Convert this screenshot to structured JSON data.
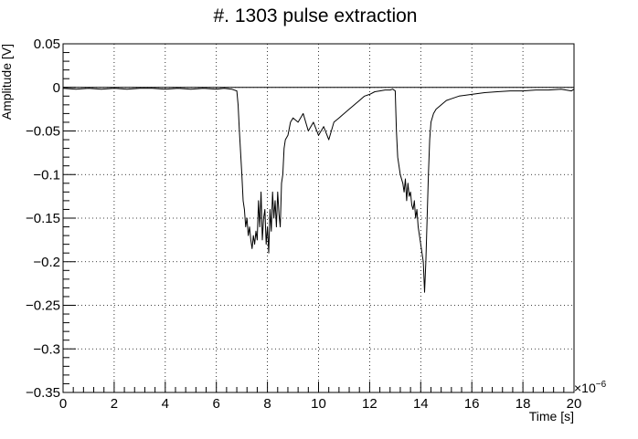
{
  "chart_data": {
    "type": "line",
    "title": "#. 1303 pulse extraction",
    "xlabel": "Time [s]",
    "ylabel": "Amplitude [V]",
    "x_exponent_label": "×10",
    "x_exponent_power": "−6",
    "xlim": [
      0,
      20
    ],
    "ylim": [
      -0.35,
      0.05
    ],
    "x_ticks": [
      0,
      2,
      4,
      6,
      8,
      10,
      12,
      14,
      16,
      18,
      20
    ],
    "x_tick_labels": [
      "0",
      "2",
      "4",
      "6",
      "8",
      "10",
      "12",
      "14",
      "16",
      "18",
      "20"
    ],
    "y_ticks": [
      -0.35,
      -0.3,
      -0.25,
      -0.2,
      -0.15,
      -0.1,
      -0.05,
      0,
      0.05
    ],
    "y_tick_labels": [
      "−0.35",
      "−0.3",
      "−0.25",
      "−0.2",
      "−0.15",
      "−0.1",
      "−0.05",
      "0",
      "0.05"
    ],
    "grid": true,
    "baseline": 0,
    "line_color": "#000000",
    "series": [
      {
        "x": [
          0,
          0.5,
          1,
          1.5,
          2,
          2.5,
          3,
          3.5,
          4,
          4.5,
          5,
          5.5,
          6,
          6.3,
          6.6,
          6.8,
          6.85,
          6.9,
          7.0,
          7.05,
          7.1,
          7.15,
          7.2,
          7.25,
          7.3,
          7.35,
          7.4,
          7.45,
          7.5,
          7.55,
          7.6,
          7.65,
          7.7,
          7.75,
          7.8,
          7.85,
          7.9,
          7.95,
          8.0,
          8.05,
          8.1,
          8.15,
          8.2,
          8.25,
          8.3,
          8.35,
          8.4,
          8.45,
          8.5,
          8.55,
          8.6,
          8.65,
          8.7,
          8.8,
          8.9,
          9.0,
          9.2,
          9.4,
          9.6,
          9.8,
          10.0,
          10.2,
          10.4,
          10.6,
          10.8,
          11.0,
          11.2,
          11.4,
          11.6,
          11.8,
          12.0,
          12.2,
          12.4,
          12.6,
          12.8,
          12.9,
          13.0,
          13.05,
          13.1,
          13.15,
          13.2,
          13.3,
          13.35,
          13.4,
          13.45,
          13.5,
          13.55,
          13.6,
          13.65,
          13.7,
          13.75,
          13.8,
          13.85,
          13.9,
          13.95,
          14.0,
          14.05,
          14.1,
          14.15,
          14.2,
          14.25,
          14.3,
          14.35,
          14.4,
          14.5,
          14.6,
          14.8,
          15.0,
          15.2,
          15.5,
          16.0,
          16.5,
          17.0,
          17.5,
          18.0,
          18.5,
          19.0,
          19.5,
          19.9,
          20.0
        ],
        "y": [
          -0.001,
          -0.002,
          -0.001,
          -0.002,
          -0.001,
          -0.002,
          -0.001,
          -0.001,
          -0.002,
          -0.001,
          -0.002,
          -0.001,
          -0.002,
          -0.001,
          -0.002,
          -0.004,
          -0.02,
          -0.05,
          -0.1,
          -0.13,
          -0.14,
          -0.16,
          -0.15,
          -0.17,
          -0.16,
          -0.175,
          -0.185,
          -0.17,
          -0.18,
          -0.165,
          -0.175,
          -0.13,
          -0.16,
          -0.12,
          -0.175,
          -0.15,
          -0.14,
          -0.18,
          -0.16,
          -0.19,
          -0.14,
          -0.165,
          -0.12,
          -0.15,
          -0.13,
          -0.16,
          -0.12,
          -0.145,
          -0.16,
          -0.11,
          -0.1,
          -0.07,
          -0.06,
          -0.055,
          -0.04,
          -0.035,
          -0.04,
          -0.03,
          -0.05,
          -0.04,
          -0.055,
          -0.045,
          -0.06,
          -0.04,
          -0.035,
          -0.03,
          -0.025,
          -0.02,
          -0.015,
          -0.01,
          -0.008,
          -0.005,
          -0.004,
          -0.003,
          -0.003,
          -0.002,
          -0.004,
          -0.05,
          -0.08,
          -0.09,
          -0.1,
          -0.11,
          -0.12,
          -0.105,
          -0.13,
          -0.11,
          -0.125,
          -0.12,
          -0.135,
          -0.14,
          -0.13,
          -0.15,
          -0.14,
          -0.16,
          -0.17,
          -0.18,
          -0.19,
          -0.2,
          -0.235,
          -0.2,
          -0.15,
          -0.1,
          -0.06,
          -0.04,
          -0.03,
          -0.025,
          -0.02,
          -0.015,
          -0.013,
          -0.01,
          -0.008,
          -0.006,
          -0.005,
          -0.004,
          -0.004,
          -0.003,
          -0.003,
          -0.002,
          -0.004,
          -0.002
        ]
      }
    ]
  }
}
